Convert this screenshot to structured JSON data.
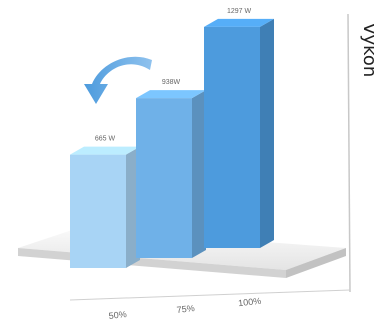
{
  "chart_data": {
    "type": "bar",
    "ylabel": "Výkon",
    "categories": [
      "50%",
      "75%",
      "100%"
    ],
    "values": [
      665,
      938,
      1297
    ],
    "data_labels": [
      "665 W",
      "938W",
      "1297 W"
    ],
    "ylim": [
      0,
      1400
    ],
    "colors": [
      "#a8d4f5",
      "#6fb1e8",
      "#4d9bdd"
    ]
  }
}
